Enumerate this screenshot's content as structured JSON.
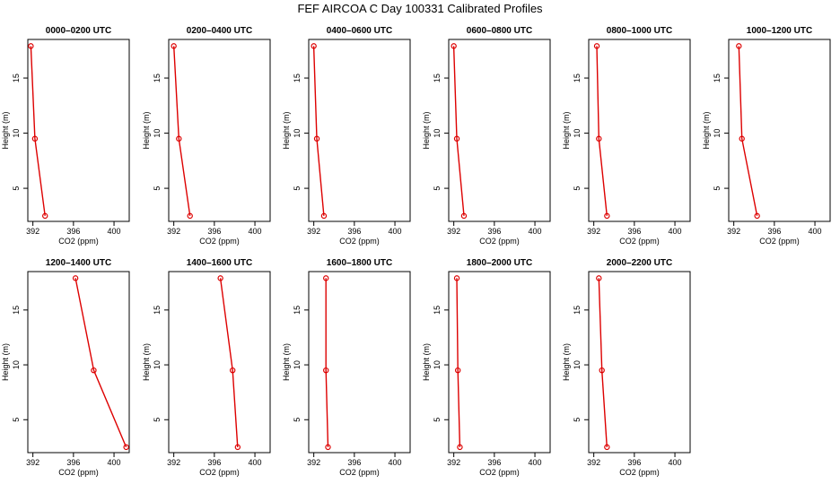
{
  "title": "FEF AIRCOA C  Day 100331  Calibrated Profiles",
  "colors": {
    "series": "#dd0000",
    "axis": "#000000"
  },
  "chart_data": {
    "type": "line",
    "xlabel": "CO2 (ppm)",
    "ylabel": "Height (m)",
    "xlim": [
      391.5,
      401.5
    ],
    "ylim": [
      2.0,
      18.5
    ],
    "xticks": [
      392,
      396,
      400
    ],
    "yticks": [
      5,
      10,
      15
    ],
    "panels": [
      {
        "title": "0000–0200 UTC",
        "points": [
          {
            "x": 391.8,
            "y": 17.9
          },
          {
            "x": 392.2,
            "y": 9.5
          },
          {
            "x": 393.2,
            "y": 2.5
          }
        ]
      },
      {
        "title": "0200–0400 UTC",
        "points": [
          {
            "x": 392.0,
            "y": 17.9
          },
          {
            "x": 392.5,
            "y": 9.5
          },
          {
            "x": 393.6,
            "y": 2.5
          }
        ]
      },
      {
        "title": "0400–0600 UTC",
        "points": [
          {
            "x": 392.0,
            "y": 17.9
          },
          {
            "x": 392.3,
            "y": 9.5
          },
          {
            "x": 393.0,
            "y": 2.5
          }
        ]
      },
      {
        "title": "0600–0800 UTC",
        "points": [
          {
            "x": 392.0,
            "y": 17.9
          },
          {
            "x": 392.3,
            "y": 9.5
          },
          {
            "x": 393.0,
            "y": 2.5
          }
        ]
      },
      {
        "title": "0800–1000 UTC",
        "points": [
          {
            "x": 392.3,
            "y": 17.9
          },
          {
            "x": 392.5,
            "y": 9.5
          },
          {
            "x": 393.3,
            "y": 2.5
          }
        ]
      },
      {
        "title": "1000–1200 UTC",
        "points": [
          {
            "x": 392.5,
            "y": 17.9
          },
          {
            "x": 392.8,
            "y": 9.5
          },
          {
            "x": 394.3,
            "y": 2.5
          }
        ]
      },
      {
        "title": "1200–1400 UTC",
        "points": [
          {
            "x": 396.2,
            "y": 17.9
          },
          {
            "x": 398.0,
            "y": 9.5
          },
          {
            "x": 401.2,
            "y": 2.5
          }
        ]
      },
      {
        "title": "1400–1600 UTC",
        "points": [
          {
            "x": 396.6,
            "y": 17.9
          },
          {
            "x": 397.8,
            "y": 9.5
          },
          {
            "x": 398.3,
            "y": 2.5
          }
        ]
      },
      {
        "title": "1600–1800 UTC",
        "points": [
          {
            "x": 393.2,
            "y": 17.9
          },
          {
            "x": 393.2,
            "y": 9.5
          },
          {
            "x": 393.4,
            "y": 2.5
          }
        ]
      },
      {
        "title": "1800–2000 UTC",
        "points": [
          {
            "x": 392.3,
            "y": 17.9
          },
          {
            "x": 392.4,
            "y": 9.5
          },
          {
            "x": 392.6,
            "y": 2.5
          }
        ]
      },
      {
        "title": "2000–2200 UTC",
        "points": [
          {
            "x": 392.5,
            "y": 17.9
          },
          {
            "x": 392.8,
            "y": 9.5
          },
          {
            "x": 393.3,
            "y": 2.5
          }
        ]
      }
    ]
  }
}
